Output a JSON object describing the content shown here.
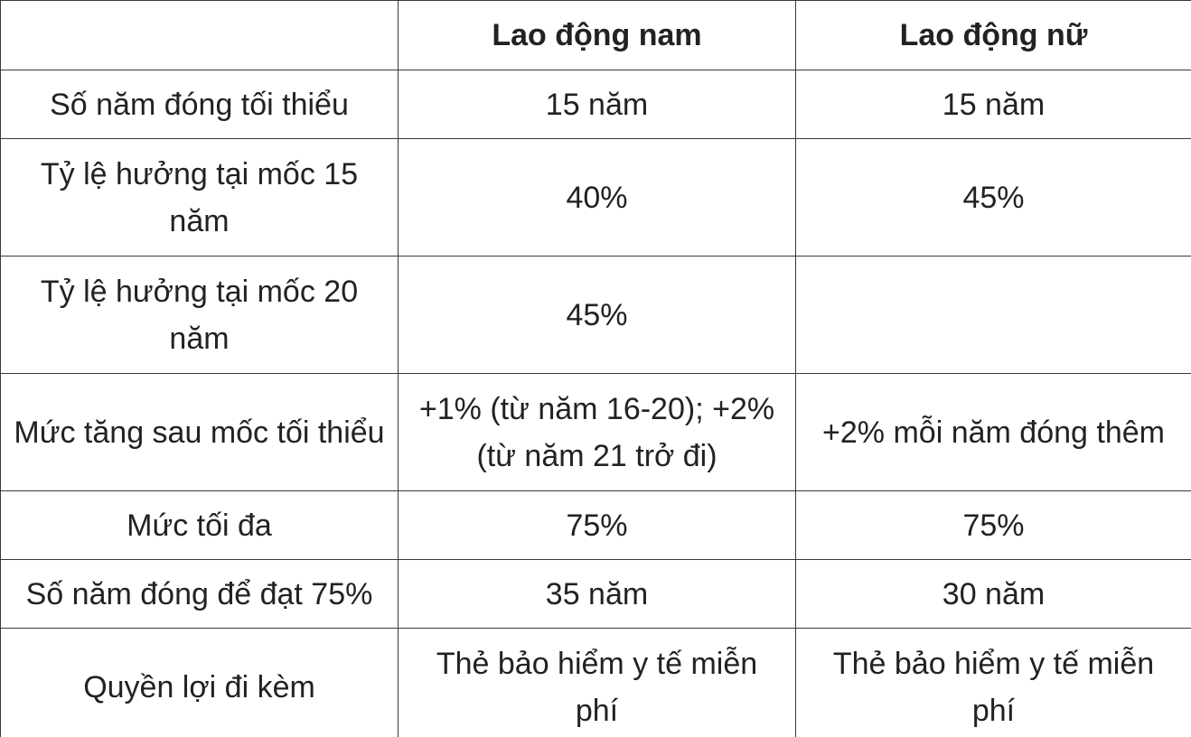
{
  "table": {
    "header": [
      "Lao động nam",
      "Lao động nữ"
    ],
    "rows": [
      [
        "Số năm đóng tối thiểu",
        "15 năm",
        "15 năm"
      ],
      [
        "Tỷ lệ hưởng tại mốc 15 năm",
        "40%",
        "45%"
      ],
      [
        "Tỷ lệ hưởng tại mốc 20 năm",
        "45%",
        null
      ],
      [
        "Mức tăng sau mốc tối thiểu",
        "+1% (từ năm 16-20); +2% (từ năm 21 trở đi)",
        "+2% mỗi năm đóng thêm"
      ],
      [
        "Mức tối đa",
        "75%",
        "75%"
      ],
      [
        "Số năm đóng để đạt 75%",
        "35 năm",
        "30 năm"
      ],
      [
        "Quyền lợi đi kèm",
        "Thẻ bảo hiểm y tế miễn phí",
        "Thẻ bảo hiểm y tế miễn phí"
      ]
    ]
  }
}
